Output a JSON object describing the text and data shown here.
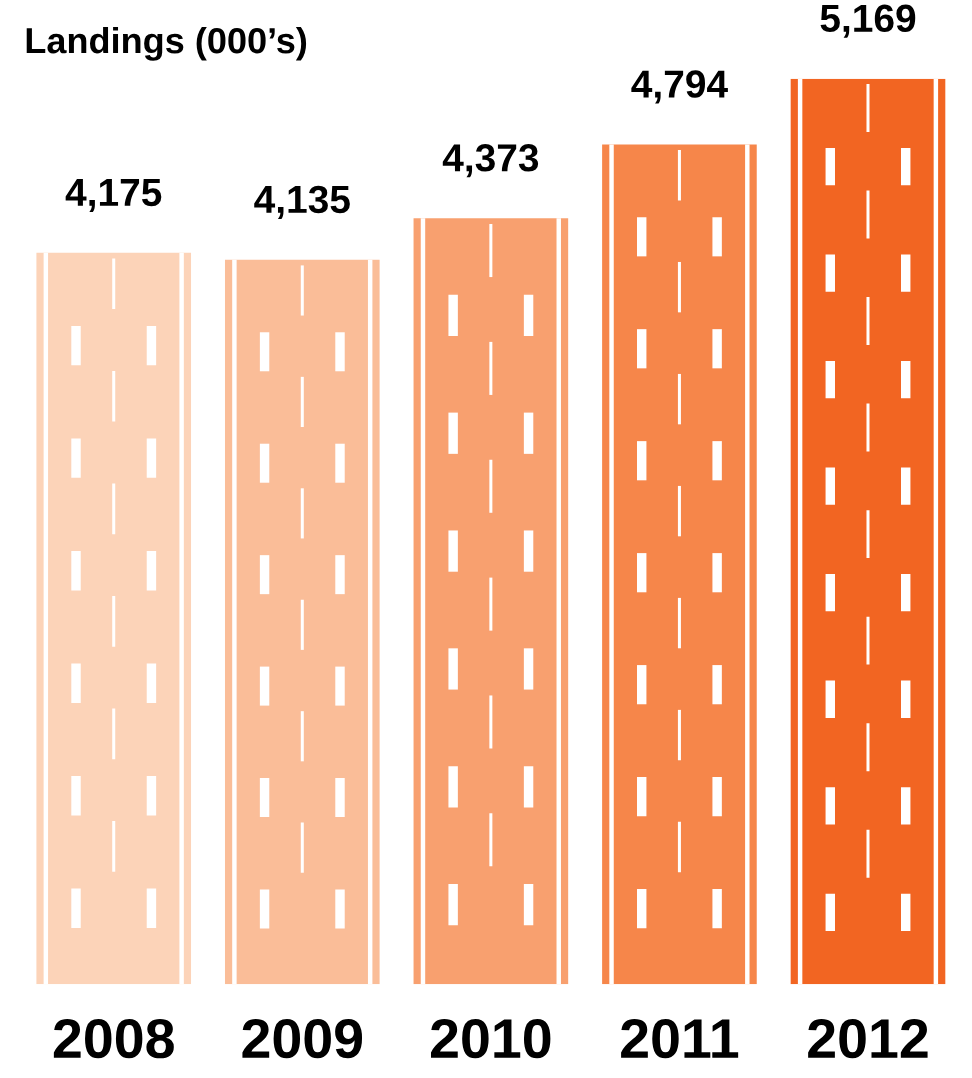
{
  "chart_data": {
    "type": "bar",
    "title": "Landings (000’s)",
    "categories": [
      "2008",
      "2009",
      "2010",
      "2011",
      "2012"
    ],
    "values": [
      4175,
      4135,
      4373,
      4794,
      5169
    ],
    "colors": [
      "#fcd3b8",
      "#fabd98",
      "#f8a06f",
      "#f6864a",
      "#f26522"
    ],
    "value_labels": [
      "4,175",
      "4,135",
      "4,373",
      "4,794",
      "5,169"
    ]
  }
}
